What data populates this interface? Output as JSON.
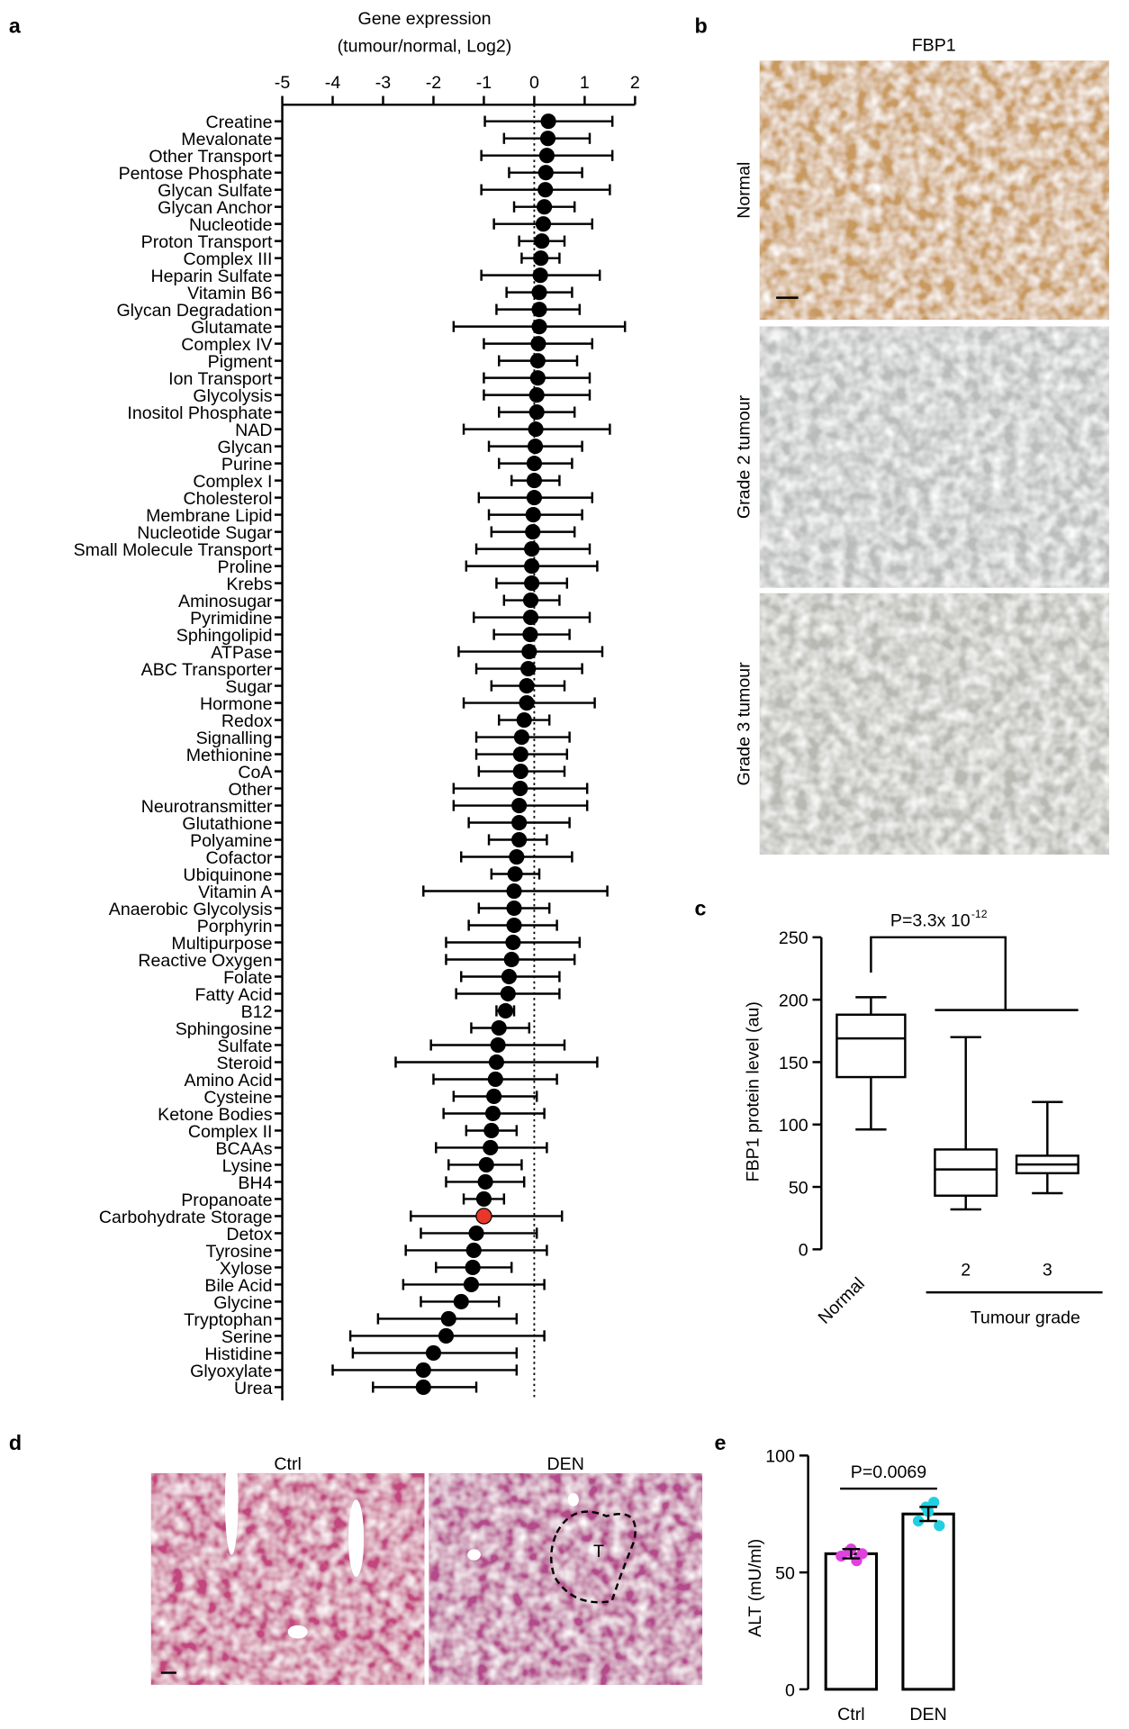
{
  "chart_data": [
    {
      "type": "forest",
      "panel": "a",
      "title": "Gene expression",
      "subtitle": "(tumour/normal, Log2)",
      "xlim": [
        -5,
        2
      ],
      "xticks": [
        -5,
        -4,
        -3,
        -2,
        -1,
        0,
        1,
        2
      ],
      "reference_line": 0,
      "color": "#000000",
      "highlight": {
        "index": 64,
        "color": "#e8362a"
      },
      "categories": [
        "Creatine",
        "Mevalonate",
        "Other Transport",
        "Pentose Phosphate",
        "Glycan Sulfate",
        "Glycan Anchor",
        "Nucleotide",
        "Proton Transport",
        "Complex III",
        "Heparin Sulfate",
        "Vitamin B6",
        "Glycan Degradation",
        "Glutamate",
        "Complex IV",
        "Pigment",
        "Ion Transport",
        "Glycolysis",
        "Inositol Phosphate",
        "NAD",
        "Glycan",
        "Purine",
        "Complex I",
        "Cholesterol",
        "Membrane Lipid",
        "Nucleotide Sugar",
        "Small Molecule Transport",
        "Proline",
        "Krebs",
        "Aminosugar",
        "Pyrimidine",
        "Sphingolipid",
        "ATPase",
        "ABC Transporter",
        "Sugar",
        "Hormone",
        "Redox",
        "Signalling",
        "Methionine",
        "CoA",
        "Other",
        "Neurotransmitter",
        "Glutathione",
        "Polyamine",
        "Cofactor",
        "Ubiquinone",
        "Vitamin A",
        "Anaerobic Glycolysis",
        "Porphyrin",
        "Multipurpose",
        "Reactive Oxygen",
        "Folate",
        "Fatty Acid",
        "B12",
        "Sphingosine",
        "Sulfate",
        "Steroid",
        "Amino Acid",
        "Cysteine",
        "Ketone Bodies",
        "Complex II",
        "BCAAs",
        "Lysine",
        "BH4",
        "Propanoate",
        "Carbohydrate Storage",
        "Detox",
        "Tyrosine",
        "Xylose",
        "Bile Acid",
        "Glycine",
        "Tryptophan",
        "Serine",
        "Histidine",
        "Glyoxylate",
        "Urea"
      ],
      "values": [
        0.28,
        0.27,
        0.25,
        0.23,
        0.22,
        0.2,
        0.18,
        0.15,
        0.13,
        0.12,
        0.1,
        0.1,
        0.1,
        0.08,
        0.07,
        0.07,
        0.05,
        0.05,
        0.03,
        0.02,
        0,
        0,
        0,
        -0.02,
        -0.03,
        -0.05,
        -0.05,
        -0.05,
        -0.07,
        -0.07,
        -0.08,
        -0.1,
        -0.12,
        -0.15,
        -0.15,
        -0.2,
        -0.25,
        -0.27,
        -0.27,
        -0.28,
        -0.3,
        -0.3,
        -0.3,
        -0.35,
        -0.38,
        -0.4,
        -0.4,
        -0.4,
        -0.42,
        -0.45,
        -0.5,
        -0.52,
        -0.57,
        -0.7,
        -0.72,
        -0.75,
        -0.77,
        -0.8,
        -0.82,
        -0.85,
        -0.87,
        -0.95,
        -0.97,
        -1,
        -1,
        -1.15,
        -1.2,
        -1.22,
        -1.25,
        -1.45,
        -1.7,
        -1.75,
        -2,
        -2.2,
        -2.2
      ],
      "lower": [
        -0.98,
        -0.6,
        -1.05,
        -0.5,
        -1.05,
        -0.4,
        -0.8,
        -0.3,
        -0.25,
        -1.05,
        -0.55,
        -0.75,
        -1.6,
        -1,
        -0.7,
        -1,
        -1,
        -0.7,
        -1.4,
        -0.9,
        -0.7,
        -0.45,
        -1.1,
        -0.9,
        -0.85,
        -1.15,
        -1.35,
        -0.75,
        -0.6,
        -1.2,
        -0.8,
        -1.5,
        -1.15,
        -0.85,
        -1.4,
        -0.7,
        -1.15,
        -1.15,
        -1.1,
        -1.6,
        -1.6,
        -1.3,
        -0.9,
        -1.45,
        -0.85,
        -2.2,
        -1.1,
        -1.3,
        -1.75,
        -1.75,
        -1.45,
        -1.55,
        -0.75,
        -1.25,
        -2.05,
        -2.75,
        -2,
        -1.6,
        -1.8,
        -1.35,
        -1.95,
        -1.7,
        -1.75,
        -1.4,
        -2.45,
        -2.25,
        -2.55,
        -1.95,
        -2.6,
        -2.25,
        -3.1,
        -3.65,
        -3.6,
        -4,
        -3.2
      ],
      "upper": [
        1.55,
        1.1,
        1.55,
        0.95,
        1.5,
        0.8,
        1.15,
        0.6,
        0.5,
        1.3,
        0.75,
        0.9,
        1.8,
        1.15,
        0.85,
        1.1,
        1.1,
        0.8,
        1.5,
        0.95,
        0.75,
        0.5,
        1.15,
        0.95,
        0.8,
        1.1,
        1.25,
        0.65,
        0.5,
        1.1,
        0.7,
        1.35,
        0.95,
        0.6,
        1.2,
        0.3,
        0.7,
        0.65,
        0.6,
        1.05,
        1.05,
        0.7,
        0.25,
        0.75,
        0.1,
        1.45,
        0.3,
        0.45,
        0.9,
        0.8,
        0.5,
        0.5,
        -0.4,
        -0.1,
        0.6,
        1.25,
        0.45,
        0.05,
        0.2,
        -0.35,
        0.25,
        -0.25,
        -0.2,
        -0.6,
        0.55,
        0.05,
        0.25,
        -0.45,
        0.2,
        -0.7,
        -0.35,
        0.2,
        -0.35,
        -0.35,
        -1.15
      ]
    },
    {
      "type": "image",
      "panel": "b",
      "title": "FBP1",
      "labels": [
        "Normal",
        "Grade 2 tumour",
        "Grade 3 tumour"
      ],
      "colors": [
        "#c99a5e",
        "#b9bcba",
        "#b8b9b3"
      ]
    },
    {
      "type": "box",
      "panel": "c",
      "ylabel": "FBP1 protein level (au)",
      "xlabel": "Tumour grade",
      "annotation": "P=3.3x 10",
      "annotation_superscript": "-12",
      "categories": [
        "Normal",
        "2",
        "3"
      ],
      "ylim": [
        0,
        250
      ],
      "yticks": [
        0,
        50,
        100,
        150,
        200,
        250
      ],
      "min": [
        96,
        32,
        45
      ],
      "q1": [
        138,
        43,
        61
      ],
      "median": [
        169,
        64,
        68
      ],
      "q3": [
        188,
        80,
        75
      ],
      "max": [
        202,
        170,
        118
      ]
    },
    {
      "type": "image",
      "panel": "d",
      "labels": [
        "Ctrl",
        "DEN"
      ],
      "annotation": "T",
      "colors": [
        "#c2457f",
        "#b44a8c"
      ]
    },
    {
      "type": "bar",
      "panel": "e",
      "ylabel": "ALT (mU/ml)",
      "annotation": "P=0.0069",
      "categories": [
        "Ctrl",
        "DEN"
      ],
      "values": [
        58,
        75
      ],
      "errors": [
        2,
        3
      ],
      "points": [
        [
          57,
          59,
          55,
          58,
          60
        ],
        [
          72,
          78,
          80,
          70,
          76
        ]
      ],
      "point_colors": [
        "#e040e0",
        "#20d0e0"
      ],
      "ylim": [
        0,
        100
      ],
      "yticks": [
        0,
        50,
        100
      ]
    }
  ]
}
